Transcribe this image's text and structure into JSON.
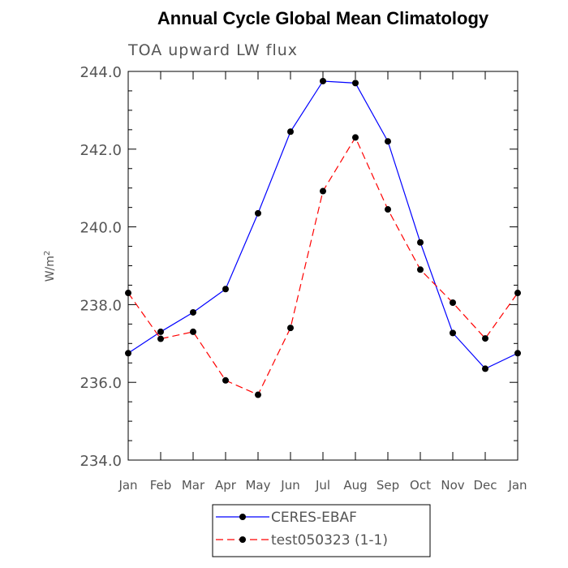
{
  "chart_data": {
    "type": "line",
    "title": "Annual Cycle Global Mean Climatology",
    "subtitle": "TOA upward LW flux",
    "xlabel": "",
    "ylabel": "W/m",
    "ylabel_sup": "2",
    "categories": [
      "Jan",
      "Feb",
      "Mar",
      "Apr",
      "May",
      "Jun",
      "Jul",
      "Aug",
      "Sep",
      "Oct",
      "Nov",
      "Dec",
      "Jan"
    ],
    "ylim": [
      234.0,
      244.0
    ],
    "yticks": [
      234.0,
      236.0,
      238.0,
      240.0,
      242.0,
      244.0
    ],
    "ytick_labels": [
      "234.0",
      "236.0",
      "238.0",
      "240.0",
      "242.0",
      "244.0"
    ],
    "grid": false,
    "legend_position": "bottom",
    "series": [
      {
        "name": "CERES-EBAF",
        "color": "#0000ff",
        "line_style": "solid",
        "marker": "filled-circle",
        "values": [
          236.75,
          237.3,
          237.8,
          238.4,
          240.35,
          242.45,
          243.75,
          243.7,
          242.2,
          239.6,
          237.27,
          236.35,
          236.75
        ]
      },
      {
        "name": "test050323 (1-1)",
        "color": "#ff0000",
        "line_style": "dashed",
        "marker": "filled-circle",
        "values": [
          238.3,
          237.12,
          237.3,
          236.05,
          235.68,
          237.4,
          240.92,
          242.3,
          240.45,
          238.9,
          238.05,
          237.13,
          238.3
        ]
      }
    ]
  }
}
